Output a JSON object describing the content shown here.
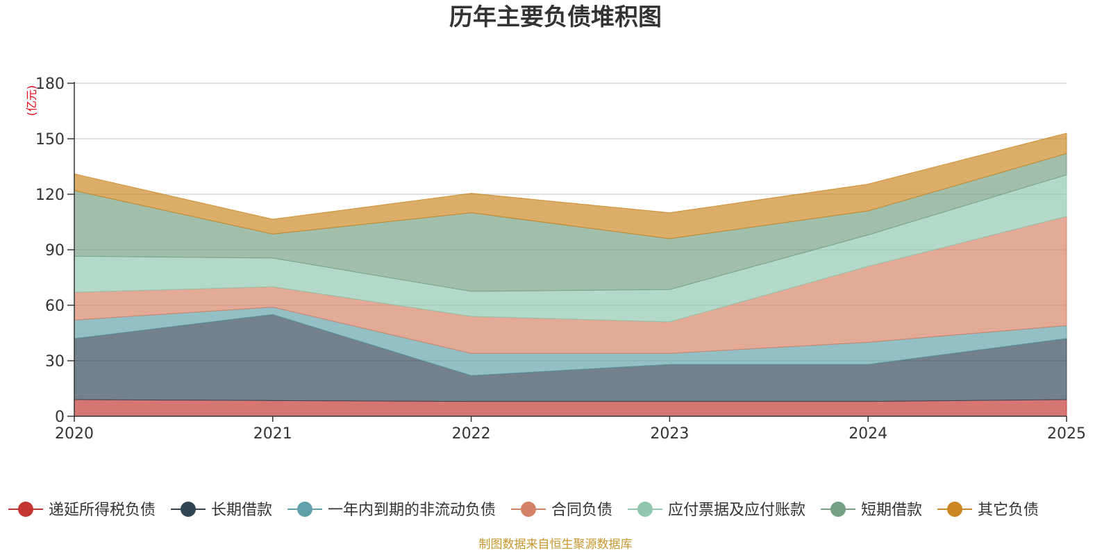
{
  "chart_data": {
    "type": "area",
    "title": "历年主要负债堆积图",
    "unit_label": "(亿元)",
    "xlabel": "",
    "ylabel": "(亿元)",
    "x": [
      "2020",
      "2021",
      "2022",
      "2023",
      "2024",
      "2025"
    ],
    "ylim": [
      0,
      180
    ],
    "yticks": [
      "0",
      "30",
      "60",
      "90",
      "120",
      "150",
      "180"
    ],
    "grid": true,
    "stacked": true,
    "legend_position": "bottom",
    "series": [
      {
        "name": "递延所得税负债",
        "color": "#c23531",
        "values": [
          9,
          8.5,
          8,
          8,
          8,
          9
        ]
      },
      {
        "name": "长期借款",
        "color": "#2f4554",
        "values": [
          33,
          46.5,
          14,
          20,
          20,
          33
        ]
      },
      {
        "name": "一年内到期的非流动负债",
        "color": "#61a0a8",
        "values": [
          10,
          4,
          12,
          6,
          12,
          7
        ]
      },
      {
        "name": "合同负债",
        "color": "#d48265",
        "values": [
          15,
          11,
          20,
          17,
          41,
          59
        ]
      },
      {
        "name": "应付票据及应付账款",
        "color": "#91c7ae",
        "values": [
          19.5,
          15.5,
          13.5,
          17.5,
          17,
          22.5
        ]
      },
      {
        "name": "短期借款",
        "color": "#749f83",
        "values": [
          35.5,
          13,
          42.5,
          27.5,
          13,
          11.5
        ]
      },
      {
        "name": "其它负债",
        "color": "#ca8622",
        "values": [
          9,
          8,
          10.5,
          14,
          14.5,
          11
        ]
      }
    ]
  },
  "footer": {
    "source": "制图数据来自恒生聚源数据库"
  }
}
